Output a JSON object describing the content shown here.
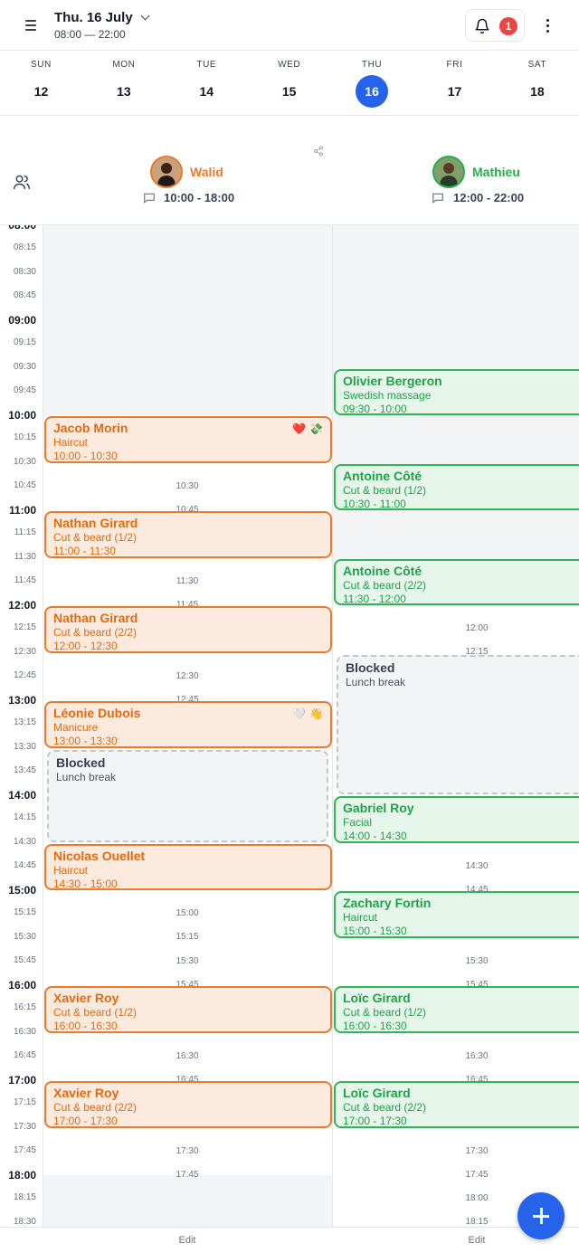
{
  "header": {
    "date_title": "Thu. 16 July",
    "hours": "08:00 — 22:00",
    "notification_count": "1",
    "menu_icon": "hamburger-icon",
    "bell_icon": "bell-icon",
    "more_icon": "kebab-icon"
  },
  "week": {
    "days": [
      {
        "name": "SUN",
        "num": "12"
      },
      {
        "name": "MON",
        "num": "13"
      },
      {
        "name": "TUE",
        "num": "14"
      },
      {
        "name": "WED",
        "num": "15"
      },
      {
        "name": "THU",
        "num": "16"
      },
      {
        "name": "FRI",
        "num": "17"
      },
      {
        "name": "SAT",
        "num": "18"
      }
    ],
    "active_index": 4
  },
  "staff": [
    {
      "name": "Walid",
      "hours": "10:00 - 18:00",
      "color": "#ea7a2c"
    },
    {
      "name": "Mathieu",
      "hours": "12:00 - 22:00",
      "color": "#22b14c"
    }
  ],
  "times": [
    {
      "label": "08:00",
      "hour": true
    },
    {
      "label": "08:15"
    },
    {
      "label": "08:30"
    },
    {
      "label": "08:45"
    },
    {
      "label": "09:00",
      "hour": true
    },
    {
      "label": "09:15"
    },
    {
      "label": "09:30"
    },
    {
      "label": "09:45"
    },
    {
      "label": "10:00",
      "hour": true
    },
    {
      "label": "10:15"
    },
    {
      "label": "10:30"
    },
    {
      "label": "10:45"
    },
    {
      "label": "11:00",
      "hour": true
    },
    {
      "label": "11:15"
    },
    {
      "label": "11:30"
    },
    {
      "label": "11:45"
    },
    {
      "label": "12:00",
      "hour": true
    },
    {
      "label": "12:15"
    },
    {
      "label": "12:30"
    },
    {
      "label": "12:45"
    },
    {
      "label": "13:00",
      "hour": true
    },
    {
      "label": "13:15"
    },
    {
      "label": "13:30"
    },
    {
      "label": "13:45"
    },
    {
      "label": "14:00",
      "hour": true
    },
    {
      "label": "14:15"
    },
    {
      "label": "14:30"
    },
    {
      "label": "14:45"
    },
    {
      "label": "15:00",
      "hour": true
    },
    {
      "label": "15:15"
    },
    {
      "label": "15:30"
    },
    {
      "label": "15:45"
    },
    {
      "label": "16:00",
      "hour": true
    },
    {
      "label": "16:15"
    },
    {
      "label": "16:30"
    },
    {
      "label": "16:45"
    },
    {
      "label": "17:00",
      "hour": true
    },
    {
      "label": "17:15"
    },
    {
      "label": "17:30"
    },
    {
      "label": "17:45"
    },
    {
      "label": "18:00",
      "hour": true
    },
    {
      "label": "18:15"
    },
    {
      "label": "18:30"
    }
  ],
  "walid_slots": [
    "10:30",
    "10:45",
    "11:30",
    "11:45",
    "12:30",
    "12:45",
    "15:00",
    "15:15",
    "15:30",
    "15:45",
    "16:30",
    "16:45",
    "17:30",
    "17:45"
  ],
  "mathieu_slots": [
    "12:00",
    "12:15",
    "14:30",
    "14:45",
    "15:30",
    "15:45",
    "16:30",
    "16:45",
    "17:30",
    "17:45",
    "18:00",
    "18:15"
  ],
  "walid_appointments": [
    {
      "client": "Jacob Morin",
      "service": "Haircut",
      "time": "10:00 - 10:30",
      "icons": [
        "❤️",
        "💸"
      ]
    },
    {
      "client": "Nathan Girard",
      "service": "Cut & beard (1/2)",
      "time": "11:00 - 11:30"
    },
    {
      "client": "Nathan Girard",
      "service": "Cut & beard (2/2)",
      "time": "12:00 - 12:30"
    },
    {
      "client": "Léonie Dubois",
      "service": "Manicure",
      "time": "13:00 - 13:30",
      "icons": [
        "🤍",
        "👋"
      ]
    },
    {
      "client": "Nicolas Ouellet",
      "service": "Haircut",
      "time": "14:30 - 15:00"
    },
    {
      "client": "Xavier Roy",
      "service": "Cut & beard (1/2)",
      "time": "16:00 - 16:30"
    },
    {
      "client": "Xavier Roy",
      "service": "Cut & beard (2/2)",
      "time": "17:00 - 17:30"
    }
  ],
  "walid_blocked": {
    "title": "Blocked",
    "reason": "Lunch break"
  },
  "mathieu_appointments": [
    {
      "client": "Olivier Bergeron",
      "service": "Swedish massage",
      "time": "09:30 - 10:00"
    },
    {
      "client": "Antoine Côté",
      "service": "Cut & beard (1/2)",
      "time": "10:30 - 11:00"
    },
    {
      "client": "Antoine Côté",
      "service": "Cut & beard (2/2)",
      "time": "11:30 - 12:00"
    },
    {
      "client": "Gabriel Roy",
      "service": "Facial",
      "time": "14:00 - 14:30"
    },
    {
      "client": "Zachary Fortin",
      "service": "Haircut",
      "time": "15:00 - 15:30"
    },
    {
      "client": "Loïc Girard",
      "service": "Cut & beard (1/2)",
      "time": "16:00 - 16:30"
    },
    {
      "client": "Loïc Girard",
      "service": "Cut & beard (2/2)",
      "time": "17:00 - 17:30"
    }
  ],
  "mathieu_blocked": {
    "title": "Blocked",
    "reason": "Lunch break"
  },
  "footer": {
    "edit_label": "Edit"
  }
}
